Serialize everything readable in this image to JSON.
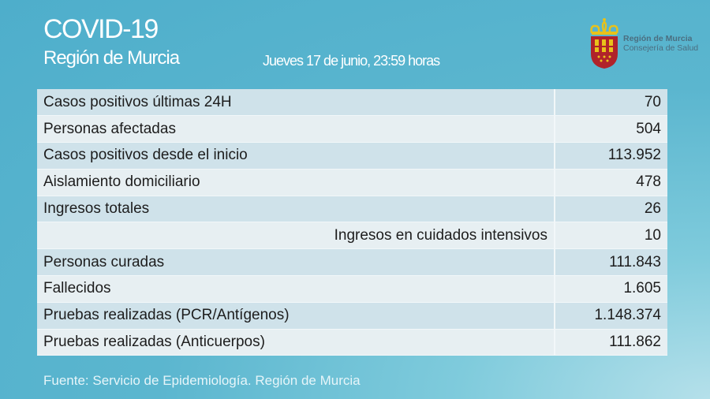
{
  "header": {
    "title": "COVID-19",
    "subtitle": "Región de Murcia",
    "date": "Jueves 17 de junio, 23:59 horas"
  },
  "logo": {
    "line1": "Región de Murcia",
    "line2": "Consejería de Salud",
    "colors": {
      "shield": "#b0232a",
      "crown": "#e8c21a"
    }
  },
  "table": {
    "rows": [
      {
        "label": "Casos positivos últimas 24H",
        "value": "70"
      },
      {
        "label": "Personas afectadas",
        "value": "504"
      },
      {
        "label": "Casos positivos desde el inicio",
        "value": "113.952"
      },
      {
        "label": "Aislamiento domiciliario",
        "value": "478"
      },
      {
        "label": "Ingresos totales",
        "value": "26"
      },
      {
        "label": "Ingresos en cuidados intensivos",
        "value": "10",
        "indented": true
      },
      {
        "label": "Personas curadas",
        "value": "111.843"
      },
      {
        "label": "Fallecidos",
        "value": "1.605"
      },
      {
        "label": "Pruebas realizadas (PCR/Antígenos)",
        "value": "1.148.374"
      },
      {
        "label": "Pruebas realizadas (Anticuerpos)",
        "value": "111.862"
      }
    ]
  },
  "footer": {
    "source": "Fuente: Servicio de Epidemiología.  Región de Murcia"
  }
}
